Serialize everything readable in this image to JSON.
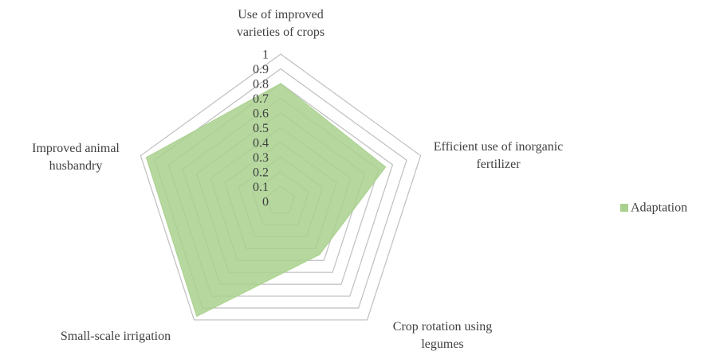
{
  "chart_data": {
    "type": "radar",
    "categories": [
      "Use of improved varieties of crops",
      "Efficient use of inorganic fertilizer",
      "Crop rotation using legumes",
      "Small-scale irrigation",
      "Improved animal husbandry"
    ],
    "series": [
      {
        "name": "Adaptation",
        "color": "#a9d18e",
        "values": [
          0.8,
          0.75,
          0.45,
          0.97,
          0.96
        ]
      }
    ],
    "ylim": [
      0,
      1
    ],
    "yticks": [
      0,
      0.1,
      0.2,
      0.3,
      0.4,
      0.5,
      0.6,
      0.7,
      0.8,
      0.9,
      1
    ],
    "grid": true,
    "legend": "right"
  }
}
